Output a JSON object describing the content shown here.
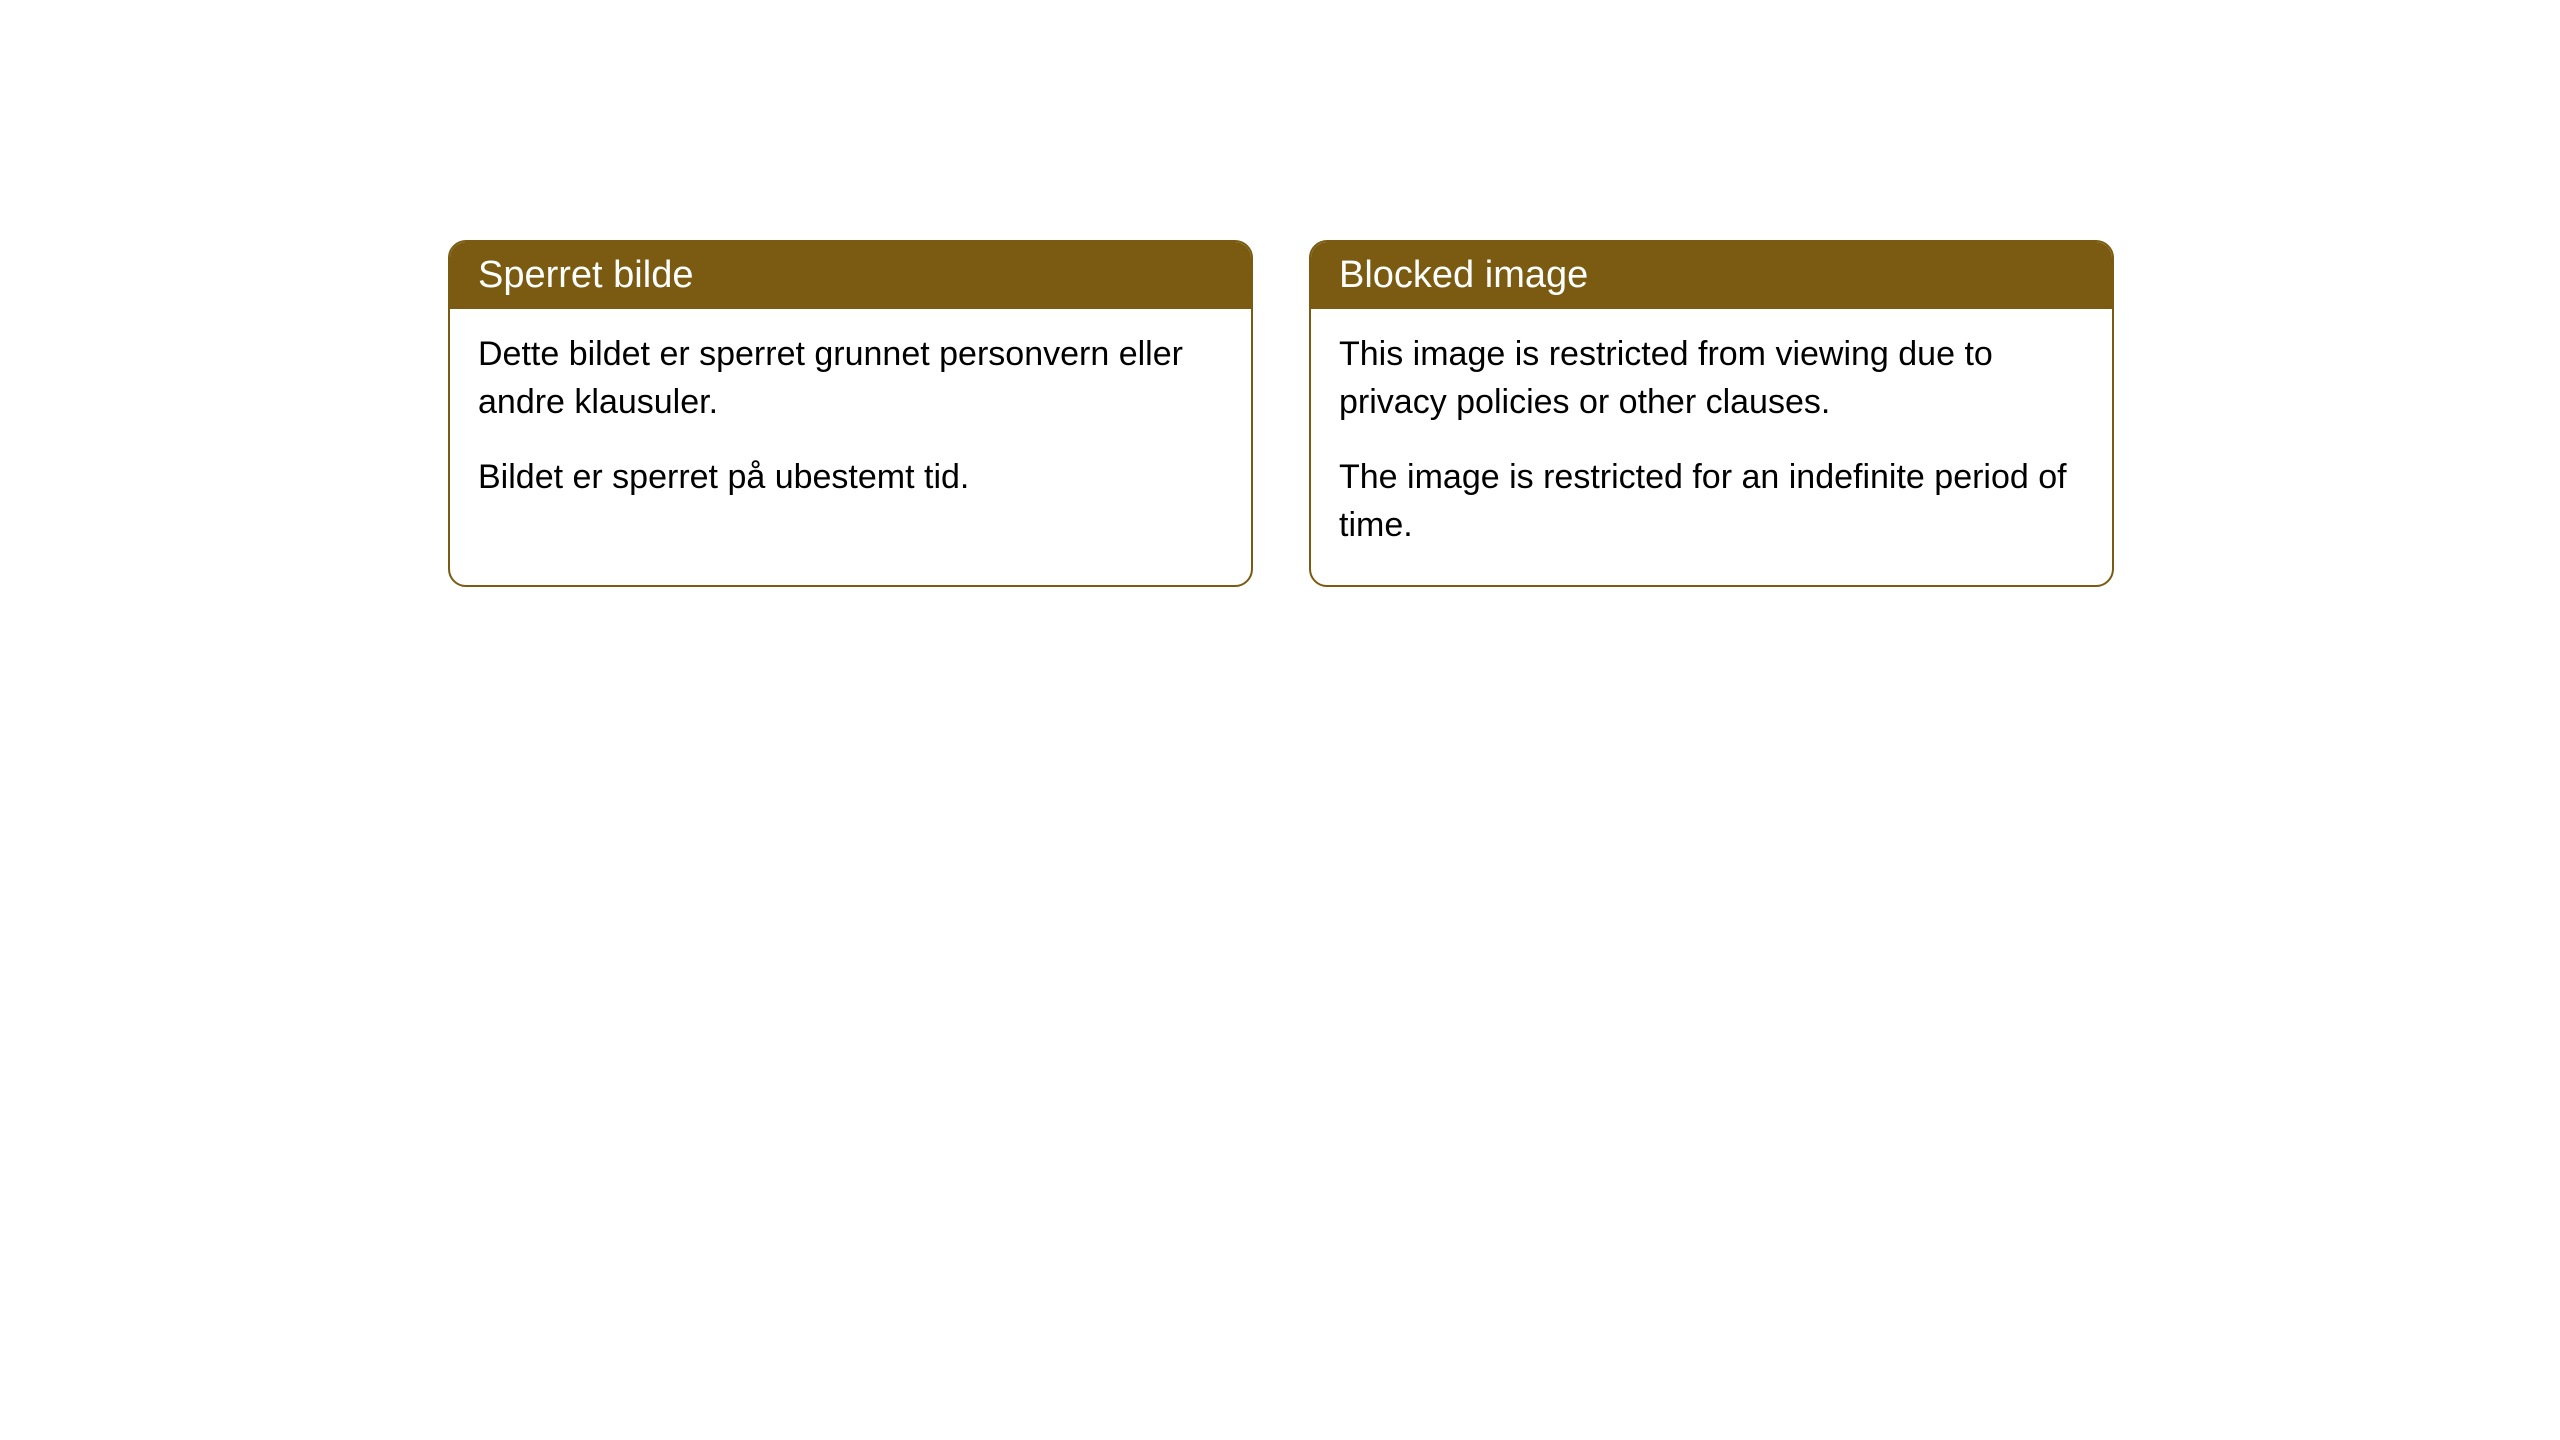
{
  "cards": [
    {
      "title": "Sperret bilde",
      "paragraph1": "Dette bildet er sperret grunnet personvern eller andre klausuler.",
      "paragraph2": "Bildet er sperret på ubestemt tid."
    },
    {
      "title": "Blocked image",
      "paragraph1": "This image is restricted from viewing due to privacy policies or other clauses.",
      "paragraph2": "The image is restricted for an indefinite period of time."
    }
  ],
  "styling": {
    "header_background_color": "#7a5b11",
    "header_text_color": "#ffffff",
    "border_color": "#7a5b11",
    "body_background_color": "#ffffff",
    "body_text_color": "#000000",
    "border_radius": 18,
    "title_fontsize": 38,
    "body_fontsize": 34
  }
}
